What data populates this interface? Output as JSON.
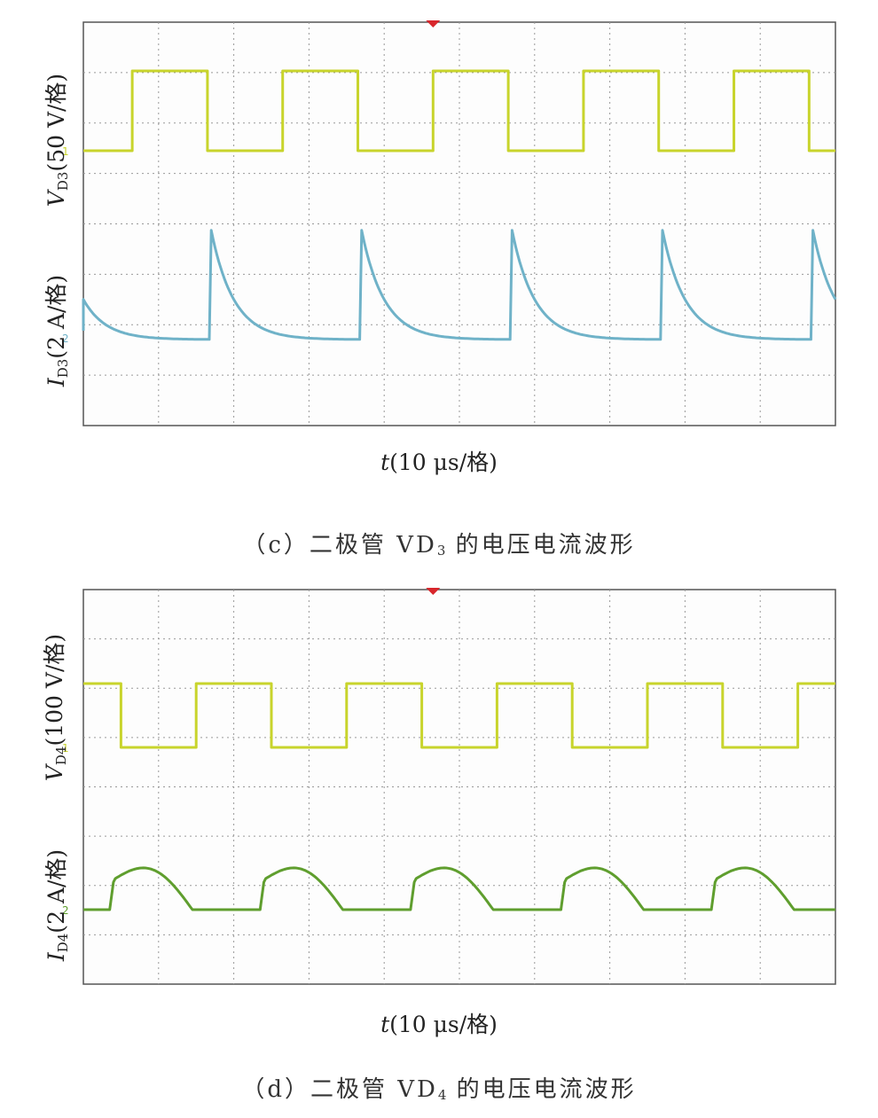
{
  "chart_data": [
    {
      "type": "line",
      "panel_caption": {
        "prefix": "（c）二极管 VD",
        "sub": "3",
        "suffix": " 的电压电流波形"
      },
      "xlabel": {
        "var": "t",
        "text": "(10 μs/格)"
      },
      "divisions_x": 10,
      "grid": true,
      "series": [
        {
          "label_var": "V",
          "label_sub": "D3",
          "label_unit": "(50 V/格)",
          "color": "#c8d42c",
          "kind": "square",
          "period_us": 20,
          "high_duty": 0.5,
          "first_rise_us": 6.5,
          "low_div": 0,
          "high_div": 1.0,
          "marker": "1"
        },
        {
          "label_var": "I",
          "label_sub": "D3",
          "label_unit": "(2 A/格)",
          "color": "#6fb2c8",
          "kind": "spike",
          "period_us": 20,
          "first_spike_us": 17,
          "peak_div": 1.3,
          "decay_us": 3,
          "marker": "2"
        }
      ]
    },
    {
      "type": "line",
      "panel_caption": {
        "prefix": "（d）二极管 VD",
        "sub": "4",
        "suffix": " 的电压电流波形"
      },
      "xlabel": {
        "var": "t",
        "text": "(10 μs/格)"
      },
      "divisions_x": 10,
      "grid": true,
      "series": [
        {
          "label_var": "V",
          "label_sub": "D4",
          "label_unit": "(100 V/格)",
          "color": "#c8d42c",
          "kind": "square",
          "period_us": 20,
          "high_duty": 0.5,
          "first_rise_us": 15,
          "low_div": 0,
          "high_div": 0.9,
          "marker": "1"
        },
        {
          "label_var": "I",
          "label_sub": "D4",
          "label_unit": "(2 A/格)",
          "color": "#5f9e2e",
          "kind": "arch",
          "period_us": 20,
          "first_rise_us": 3.5,
          "width_us": 11,
          "peak_div": 0.7,
          "marker": "2"
        }
      ]
    }
  ]
}
